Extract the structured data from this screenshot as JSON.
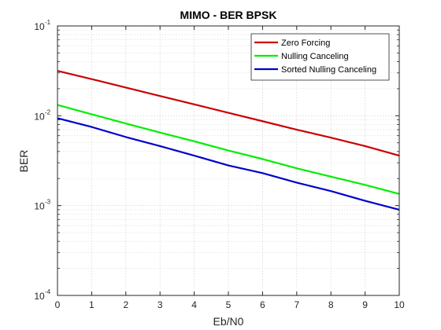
{
  "chart_data": {
    "type": "line",
    "title": "MIMO - BER BPSK",
    "xlabel": "Eb/N0",
    "ylabel": "BER",
    "x": [
      0,
      1,
      2,
      3,
      4,
      5,
      6,
      7,
      8,
      9,
      10
    ],
    "xlim": [
      0,
      10
    ],
    "ylim": [
      0.0001,
      0.1
    ],
    "yscale": "log",
    "grid": true,
    "minor_grid": true,
    "legend_position": "top-right",
    "x_ticks": [
      "0",
      "1",
      "2",
      "3",
      "4",
      "5",
      "6",
      "7",
      "8",
      "9",
      "10"
    ],
    "y_ticks": [
      {
        "base": "10",
        "exp": "-4",
        "value": 0.0001
      },
      {
        "base": "10",
        "exp": "-3",
        "value": 0.001
      },
      {
        "base": "10",
        "exp": "-2",
        "value": 0.01
      },
      {
        "base": "10",
        "exp": "-1",
        "value": 0.1
      }
    ],
    "series": [
      {
        "name": "Zero Forcing",
        "color": "#cc0000",
        "values": [
          0.0316,
          0.0256,
          0.0206,
          0.0166,
          0.0134,
          0.0108,
          0.0087,
          0.007,
          0.0057,
          0.0046,
          0.0036
        ]
      },
      {
        "name": "Nulling Canceling",
        "color": "#00ee00",
        "values": [
          0.0132,
          0.0104,
          0.0082,
          0.0065,
          0.0052,
          0.0041,
          0.0033,
          0.0026,
          0.0021,
          0.0017,
          0.00135
        ]
      },
      {
        "name": "Sorted Nulling Canceling",
        "color": "#0000cc",
        "values": [
          0.0094,
          0.0075,
          0.0058,
          0.0046,
          0.0036,
          0.0028,
          0.0023,
          0.0018,
          0.00145,
          0.00113,
          0.0009
        ]
      }
    ]
  }
}
